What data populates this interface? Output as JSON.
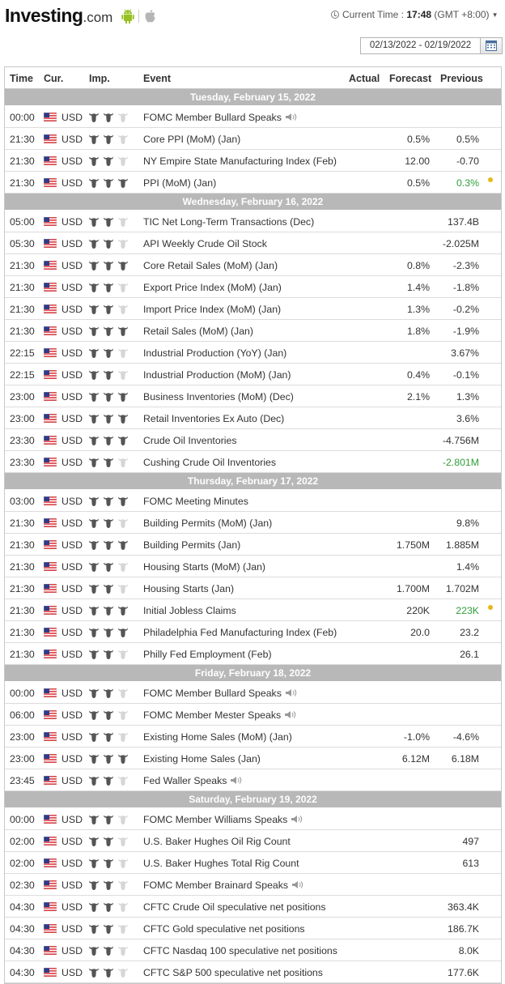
{
  "header": {
    "logo_main": "Investing",
    "logo_domain": ".com",
    "current_time_label": "Current Time :",
    "current_time_value": "17:48",
    "timezone": "(GMT +8:00)",
    "date_range": "02/13/2022 - 02/19/2022"
  },
  "columns": {
    "time": "Time",
    "currency": "Cur.",
    "importance": "Imp.",
    "event": "Event",
    "actual": "Actual",
    "forecast": "Forecast",
    "previous": "Previous"
  },
  "colors": {
    "day_header_bg": "#b8b8b8",
    "bull_on": "#555555",
    "bull_off": "#d6d6d6",
    "better_than_expected": "#2f9e3a",
    "revised_dot": "#e7b71b"
  },
  "days": [
    {
      "date": "Tuesday, February 15, 2022",
      "events": [
        {
          "time": "00:00",
          "cur": "USD",
          "imp": 2,
          "event": "FOMC Member Bullard Speaks",
          "speech": true,
          "forecast": "",
          "previous": ""
        },
        {
          "time": "21:30",
          "cur": "USD",
          "imp": 2,
          "event": "Core PPI (MoM) (Jan)",
          "forecast": "0.5%",
          "previous": "0.5%"
        },
        {
          "time": "21:30",
          "cur": "USD",
          "imp": 2,
          "event": "NY Empire State Manufacturing Index (Feb)",
          "forecast": "12.00",
          "previous": "-0.70"
        },
        {
          "time": "21:30",
          "cur": "USD",
          "imp": 3,
          "event": "PPI (MoM) (Jan)",
          "forecast": "0.5%",
          "previous": "0.3%",
          "prev_green": true,
          "revised": true
        }
      ]
    },
    {
      "date": "Wednesday, February 16, 2022",
      "events": [
        {
          "time": "05:00",
          "cur": "USD",
          "imp": 2,
          "event": "TIC Net Long-Term Transactions (Dec)",
          "forecast": "",
          "previous": "137.4B"
        },
        {
          "time": "05:30",
          "cur": "USD",
          "imp": 2,
          "event": "API Weekly Crude Oil Stock",
          "forecast": "",
          "previous": "-2.025M"
        },
        {
          "time": "21:30",
          "cur": "USD",
          "imp": 3,
          "event": "Core Retail Sales (MoM) (Jan)",
          "forecast": "0.8%",
          "previous": "-2.3%"
        },
        {
          "time": "21:30",
          "cur": "USD",
          "imp": 2,
          "event": "Export Price Index (MoM) (Jan)",
          "forecast": "1.4%",
          "previous": "-1.8%"
        },
        {
          "time": "21:30",
          "cur": "USD",
          "imp": 2,
          "event": "Import Price Index (MoM) (Jan)",
          "forecast": "1.3%",
          "previous": "-0.2%"
        },
        {
          "time": "21:30",
          "cur": "USD",
          "imp": 3,
          "event": "Retail Sales (MoM) (Jan)",
          "forecast": "1.8%",
          "previous": "-1.9%"
        },
        {
          "time": "22:15",
          "cur": "USD",
          "imp": 2,
          "event": "Industrial Production (YoY) (Jan)",
          "forecast": "",
          "previous": "3.67%"
        },
        {
          "time": "22:15",
          "cur": "USD",
          "imp": 2,
          "event": "Industrial Production (MoM) (Jan)",
          "forecast": "0.4%",
          "previous": "-0.1%"
        },
        {
          "time": "23:00",
          "cur": "USD",
          "imp": 3,
          "event": "Business Inventories (MoM) (Dec)",
          "forecast": "2.1%",
          "previous": "1.3%"
        },
        {
          "time": "23:00",
          "cur": "USD",
          "imp": 3,
          "event": "Retail Inventories Ex Auto (Dec)",
          "forecast": "",
          "previous": "3.6%"
        },
        {
          "time": "23:30",
          "cur": "USD",
          "imp": 3,
          "event": "Crude Oil Inventories",
          "forecast": "",
          "previous": "-4.756M"
        },
        {
          "time": "23:30",
          "cur": "USD",
          "imp": 2,
          "event": "Cushing Crude Oil Inventories",
          "forecast": "",
          "previous": "-2.801M",
          "prev_green": true
        }
      ]
    },
    {
      "date": "Thursday, February 17, 2022",
      "events": [
        {
          "time": "03:00",
          "cur": "USD",
          "imp": 3,
          "event": "FOMC Meeting Minutes",
          "forecast": "",
          "previous": ""
        },
        {
          "time": "21:30",
          "cur": "USD",
          "imp": 2,
          "event": "Building Permits (MoM) (Jan)",
          "forecast": "",
          "previous": "9.8%"
        },
        {
          "time": "21:30",
          "cur": "USD",
          "imp": 3,
          "event": "Building Permits (Jan)",
          "forecast": "1.750M",
          "previous": "1.885M"
        },
        {
          "time": "21:30",
          "cur": "USD",
          "imp": 2,
          "event": "Housing Starts (MoM) (Jan)",
          "forecast": "",
          "previous": "1.4%"
        },
        {
          "time": "21:30",
          "cur": "USD",
          "imp": 2,
          "event": "Housing Starts (Jan)",
          "forecast": "1.700M",
          "previous": "1.702M"
        },
        {
          "time": "21:30",
          "cur": "USD",
          "imp": 3,
          "event": "Initial Jobless Claims",
          "forecast": "220K",
          "previous": "223K",
          "prev_green": true,
          "revised": true
        },
        {
          "time": "21:30",
          "cur": "USD",
          "imp": 3,
          "event": "Philadelphia Fed Manufacturing Index (Feb)",
          "forecast": "20.0",
          "previous": "23.2"
        },
        {
          "time": "21:30",
          "cur": "USD",
          "imp": 2,
          "event": "Philly Fed Employment (Feb)",
          "forecast": "",
          "previous": "26.1"
        }
      ]
    },
    {
      "date": "Friday, February 18, 2022",
      "events": [
        {
          "time": "00:00",
          "cur": "USD",
          "imp": 2,
          "event": "FOMC Member Bullard Speaks",
          "speech": true,
          "forecast": "",
          "previous": ""
        },
        {
          "time": "06:00",
          "cur": "USD",
          "imp": 2,
          "event": "FOMC Member Mester Speaks",
          "speech": true,
          "forecast": "",
          "previous": ""
        },
        {
          "time": "23:00",
          "cur": "USD",
          "imp": 2,
          "event": "Existing Home Sales (MoM) (Jan)",
          "forecast": "-1.0%",
          "previous": "-4.6%"
        },
        {
          "time": "23:00",
          "cur": "USD",
          "imp": 3,
          "event": "Existing Home Sales (Jan)",
          "forecast": "6.12M",
          "previous": "6.18M"
        },
        {
          "time": "23:45",
          "cur": "USD",
          "imp": 2,
          "event": "Fed Waller Speaks",
          "speech": true,
          "forecast": "",
          "previous": ""
        }
      ]
    },
    {
      "date": "Saturday, February 19, 2022",
      "events": [
        {
          "time": "00:00",
          "cur": "USD",
          "imp": 2,
          "event": "FOMC Member Williams Speaks",
          "speech": true,
          "forecast": "",
          "previous": ""
        },
        {
          "time": "02:00",
          "cur": "USD",
          "imp": 2,
          "event": "U.S. Baker Hughes Oil Rig Count",
          "forecast": "",
          "previous": "497"
        },
        {
          "time": "02:00",
          "cur": "USD",
          "imp": 2,
          "event": "U.S. Baker Hughes Total Rig Count",
          "forecast": "",
          "previous": "613"
        },
        {
          "time": "02:30",
          "cur": "USD",
          "imp": 2,
          "event": "FOMC Member Brainard Speaks",
          "speech": true,
          "forecast": "",
          "previous": ""
        },
        {
          "time": "04:30",
          "cur": "USD",
          "imp": 2,
          "event": "CFTC Crude Oil speculative net positions",
          "forecast": "",
          "previous": "363.4K"
        },
        {
          "time": "04:30",
          "cur": "USD",
          "imp": 2,
          "event": "CFTC Gold speculative net positions",
          "forecast": "",
          "previous": "186.7K"
        },
        {
          "time": "04:30",
          "cur": "USD",
          "imp": 2,
          "event": "CFTC Nasdaq 100 speculative net positions",
          "forecast": "",
          "previous": "8.0K"
        },
        {
          "time": "04:30",
          "cur": "USD",
          "imp": 2,
          "event": "CFTC S&P 500 speculative net positions",
          "forecast": "",
          "previous": "177.6K"
        }
      ]
    }
  ]
}
